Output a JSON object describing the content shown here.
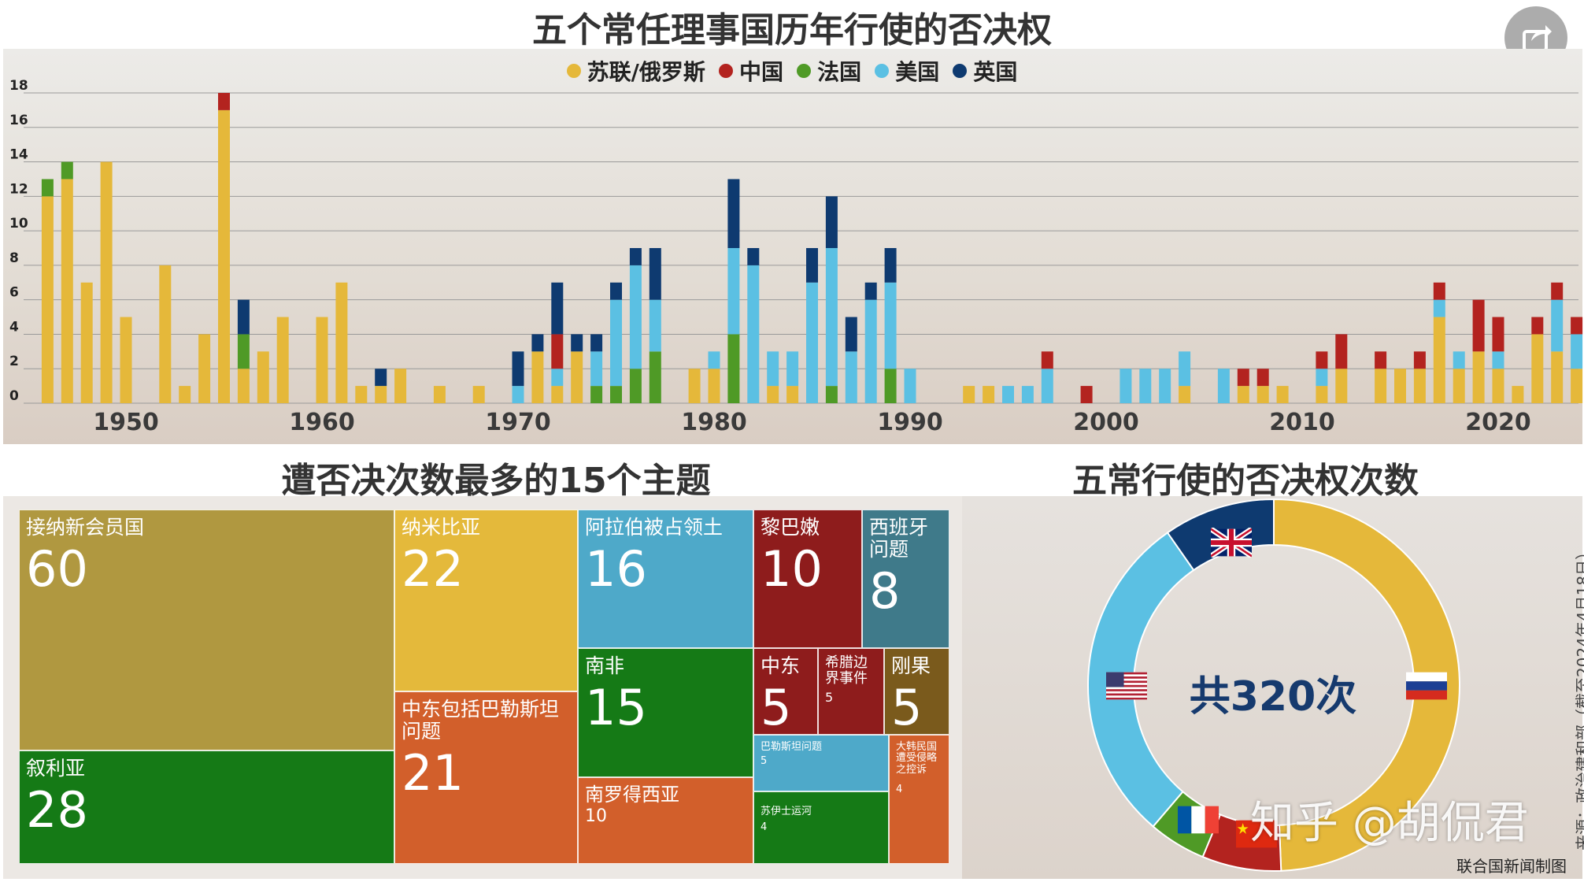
{
  "titles": {
    "main": "五个常任理事国历年行使的否决权",
    "treemap": "遭否决次数最多的15个主题",
    "donut": "五常行使的否决权次数"
  },
  "colors": {
    "russia": "#e5b83a",
    "china": "#b3231f",
    "france": "#4f9a26",
    "usa": "#5bc0e3",
    "uk": "#0e3a70"
  },
  "share_icon": "share-icon",
  "chart_data": [
    {
      "type": "bar",
      "stacked": true,
      "title": "五个常任理事国历年行使的否决权",
      "legend": [
        "苏联/俄罗斯",
        "中国",
        "法国",
        "美国",
        "英国"
      ],
      "legend_placement": "top-center",
      "x_ticks": [
        "1950",
        "1960",
        "1970",
        "1980",
        "1990",
        "2000",
        "2010",
        "2020"
      ],
      "y_ticks": [
        "0",
        "2",
        "4",
        "6",
        "8",
        "10",
        "12",
        "14",
        "16",
        "18"
      ],
      "ylim": [
        0,
        18
      ],
      "grid": true,
      "bars": [
        {
          "year": 1946,
          "ru": 12,
          "fr": 1
        },
        {
          "year": 1947,
          "ru": 13,
          "fr": 1
        },
        {
          "year": 1948,
          "ru": 7
        },
        {
          "year": 1949,
          "ru": 14
        },
        {
          "year": 1950,
          "ru": 5
        },
        {
          "year": 1952,
          "ru": 8
        },
        {
          "year": 1953,
          "ru": 1
        },
        {
          "year": 1954,
          "ru": 4
        },
        {
          "year": 1955,
          "ru": 17,
          "cn": 1
        },
        {
          "year": 1956,
          "ru": 2,
          "fr": 2,
          "uk": 2
        },
        {
          "year": 1957,
          "ru": 3
        },
        {
          "year": 1958,
          "ru": 5
        },
        {
          "year": 1960,
          "ru": 5
        },
        {
          "year": 1961,
          "ru": 7
        },
        {
          "year": 1962,
          "ru": 1
        },
        {
          "year": 1963,
          "ru": 1,
          "uk": 1
        },
        {
          "year": 1964,
          "ru": 2
        },
        {
          "year": 1966,
          "ru": 1
        },
        {
          "year": 1968,
          "ru": 1
        },
        {
          "year": 1970,
          "us": 1,
          "uk": 2
        },
        {
          "year": 1971,
          "ru": 3,
          "uk": 1
        },
        {
          "year": 1972,
          "ru": 1,
          "cn": 2,
          "us": 1,
          "uk": 3
        },
        {
          "year": 1973,
          "ru": 3,
          "uk": 1
        },
        {
          "year": 1974,
          "fr": 1,
          "us": 2,
          "uk": 1
        },
        {
          "year": 1975,
          "us": 5,
          "fr": 1,
          "uk": 1
        },
        {
          "year": 1976,
          "us": 6,
          "fr": 2,
          "uk": 1
        },
        {
          "year": 1977,
          "fr": 3,
          "us": 3,
          "uk": 3
        },
        {
          "year": 1979,
          "ru": 2
        },
        {
          "year": 1980,
          "ru": 2,
          "us": 1
        },
        {
          "year": 1981,
          "fr": 4,
          "us": 5,
          "uk": 4
        },
        {
          "year": 1982,
          "us": 8,
          "uk": 1
        },
        {
          "year": 1983,
          "ru": 1,
          "us": 2
        },
        {
          "year": 1984,
          "ru": 1,
          "us": 2
        },
        {
          "year": 1985,
          "us": 7,
          "uk": 2
        },
        {
          "year": 1986,
          "fr": 1,
          "us": 8,
          "uk": 3
        },
        {
          "year": 1987,
          "us": 3,
          "uk": 2
        },
        {
          "year": 1988,
          "us": 6,
          "uk": 1
        },
        {
          "year": 1989,
          "fr": 2,
          "us": 5,
          "uk": 2
        },
        {
          "year": 1990,
          "us": 2
        },
        {
          "year": 1993,
          "ru": 1
        },
        {
          "year": 1994,
          "ru": 1
        },
        {
          "year": 1995,
          "us": 1
        },
        {
          "year": 1996,
          "us": 1
        },
        {
          "year": 1997,
          "cn": 1,
          "us": 2
        },
        {
          "year": 1999,
          "cn": 1
        },
        {
          "year": 2001,
          "us": 2
        },
        {
          "year": 2002,
          "us": 2
        },
        {
          "year": 2003,
          "us": 2
        },
        {
          "year": 2004,
          "ru": 1,
          "us": 2
        },
        {
          "year": 2006,
          "us": 2
        },
        {
          "year": 2007,
          "ru": 1,
          "cn": 1
        },
        {
          "year": 2008,
          "ru": 1,
          "cn": 1
        },
        {
          "year": 2009,
          "ru": 1
        },
        {
          "year": 2011,
          "ru": 1,
          "cn": 1,
          "us": 1
        },
        {
          "year": 2012,
          "ru": 2,
          "cn": 2
        },
        {
          "year": 2014,
          "ru": 2,
          "cn": 1
        },
        {
          "year": 2015,
          "ru": 2
        },
        {
          "year": 2016,
          "ru": 2,
          "cn": 1
        },
        {
          "year": 2017,
          "ru": 5,
          "cn": 1,
          "us": 1
        },
        {
          "year": 2018,
          "ru": 2,
          "us": 1
        },
        {
          "year": 2019,
          "ru": 3,
          "cn": 3
        },
        {
          "year": 2020,
          "ru": 2,
          "cn": 2,
          "us": 1
        },
        {
          "year": 2021,
          "ru": 1
        },
        {
          "year": 2022,
          "ru": 4,
          "cn": 1
        },
        {
          "year": 2023,
          "ru": 3,
          "cn": 1,
          "us": 3
        },
        {
          "year": 2024,
          "ru": 2,
          "cn": 1,
          "us": 2
        }
      ]
    },
    {
      "type": "treemap",
      "title": "遭否决次数最多的15个主题",
      "items": [
        {
          "label": "接纳新会员国",
          "value": 60,
          "color": "#b09840"
        },
        {
          "label": "叙利亚",
          "value": 28,
          "color": "#157a16"
        },
        {
          "label": "纳米比亚",
          "value": 22,
          "color": "#e4b93b"
        },
        {
          "label": "中东包括巴勒斯坦问题",
          "value": 21,
          "color": "#d25f2b"
        },
        {
          "label": "阿拉伯被占领土",
          "value": 16,
          "color": "#4ea9c9"
        },
        {
          "label": "南非",
          "value": 15,
          "color": "#157a16"
        },
        {
          "label": "南罗得西亚",
          "value": 10,
          "color": "#d25f2b"
        },
        {
          "label": "黎巴嫩",
          "value": 10,
          "color": "#8e1c1c"
        },
        {
          "label": "西班牙问题",
          "value": 8,
          "color": "#3f7a8a"
        },
        {
          "label": "中东",
          "value": 5,
          "color": "#8e1c1c"
        },
        {
          "label": "希腊边界事件",
          "value": 5,
          "color": "#8e1c1c"
        },
        {
          "label": "刚果",
          "value": 5,
          "color": "#7a5a1c"
        },
        {
          "label": "巴勒斯坦问题",
          "value": 5,
          "color": "#4ea9c9"
        },
        {
          "label": "苏伊士运河",
          "value": 4,
          "color": "#157a16"
        },
        {
          "label": "大韩民国遭受侵略之控诉",
          "value": 4,
          "color": "#d25f2b"
        }
      ]
    },
    {
      "type": "pie",
      "donut": true,
      "title": "五常行使的否决权次数",
      "center_text": "共320次",
      "slices": [
        {
          "name": "苏联/俄罗斯",
          "value": 158,
          "color": "#e5b83a",
          "flag": "russia-flag-icon"
        },
        {
          "name": "中国",
          "value": 22,
          "color": "#b3231f",
          "flag": "china-flag-icon"
        },
        {
          "name": "法国",
          "value": 16,
          "color": "#4f9a26",
          "flag": "france-flag-icon"
        },
        {
          "name": "美国",
          "value": 93,
          "color": "#5bc0e3",
          "flag": "usa-flag-icon"
        },
        {
          "name": "英国",
          "value": 31,
          "color": "#0e3a70",
          "flag": "uk-flag-icon"
        }
      ]
    }
  ],
  "labels": {
    "legend": [
      "苏联/俄罗斯",
      "中国",
      "法国",
      "美国",
      "英国"
    ],
    "x_ticks": [
      "1950",
      "1960",
      "1970",
      "1980",
      "1990",
      "2000",
      "2010",
      "2020"
    ],
    "y_ticks": [
      "0",
      "2",
      "4",
      "6",
      "8",
      "10",
      "12",
      "14",
      "16",
      "18"
    ],
    "treemap_items": [
      "接纳新会员国",
      "叙利亚",
      "纳米比亚",
      "中东包括巴勒斯坦问题",
      "阿拉伯被占领土",
      "南非",
      "南罗得西亚",
      "黎巴嫩",
      "西班牙问题",
      "中东",
      "希腊边界事件",
      "刚果",
      "巴勒斯坦问题",
      "苏伊士运河",
      "大韩民国遭受侵略之控诉"
    ],
    "treemap_values": [
      "60",
      "28",
      "22",
      "21",
      "16",
      "15",
      "10",
      "10",
      "8",
      "5",
      "5",
      "5",
      "5",
      "4",
      "4"
    ]
  },
  "source_note": "来源：政治建和部（截至2024年4月18日）",
  "credit": "联合国新闻制图",
  "watermark": "知乎 @胡侃君"
}
